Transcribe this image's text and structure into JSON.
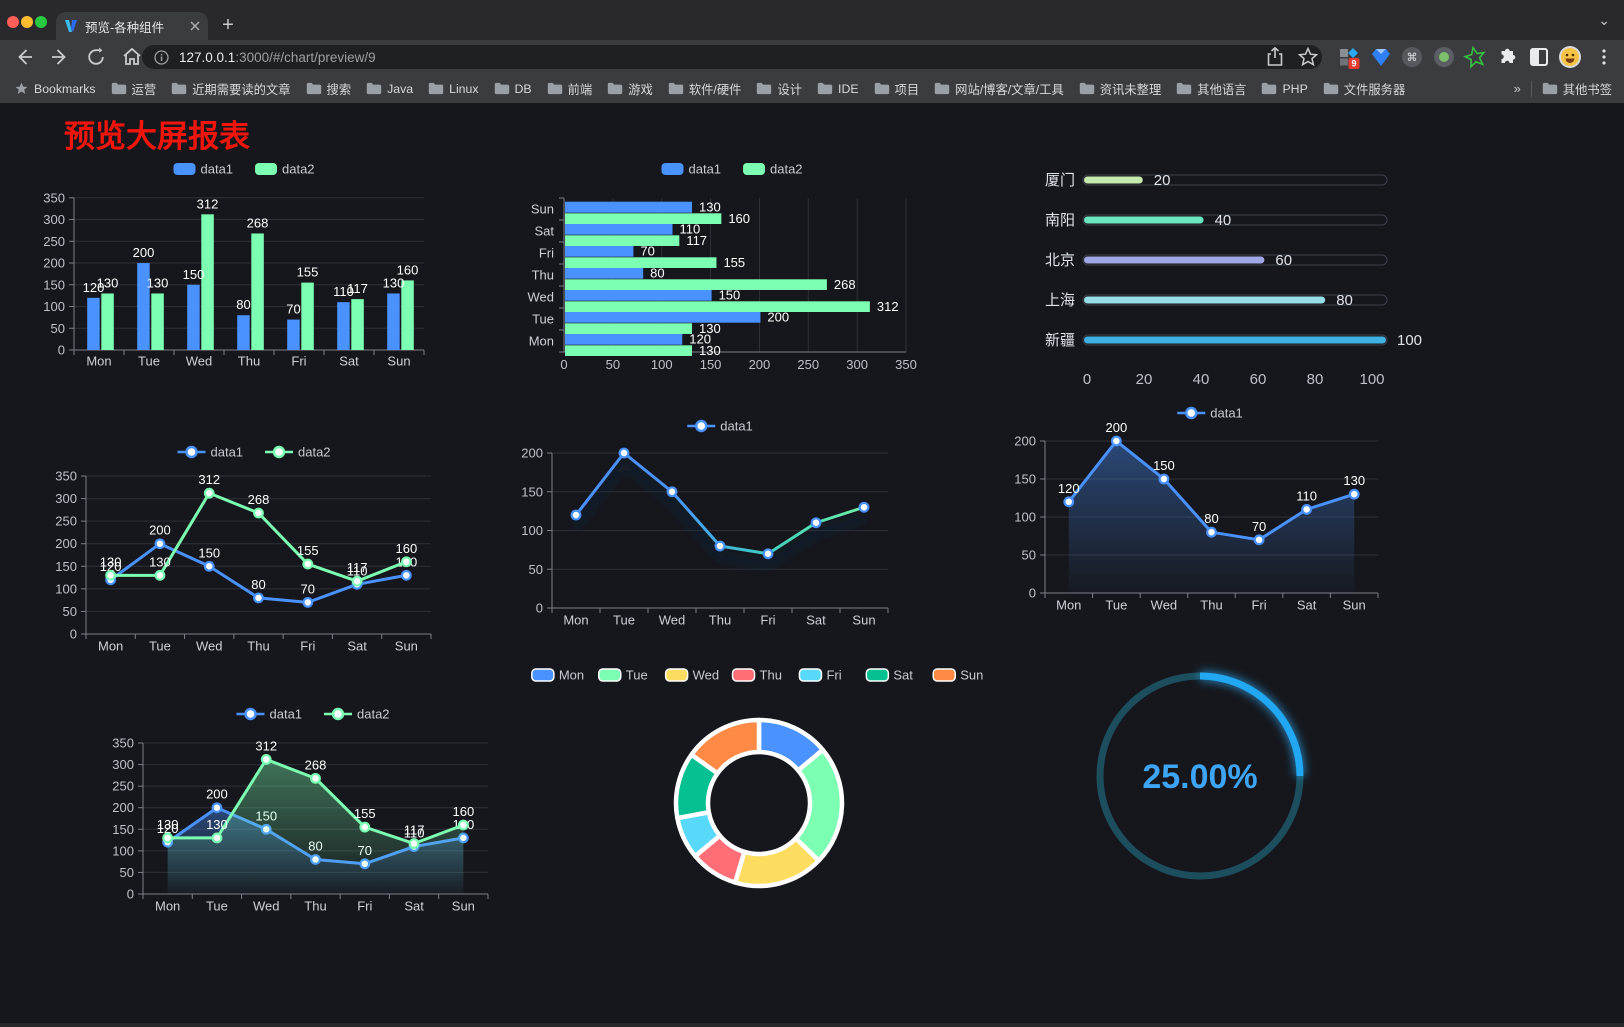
{
  "browser": {
    "tab": {
      "title": "预览-各种组件"
    },
    "url": {
      "host": "127.0.0.1",
      "rest": ":3000/#/chart/preview/9"
    },
    "bookmarks_label": "Bookmarks",
    "bookmarks": [
      "运营",
      "近期需要读的文章",
      "搜索",
      "Java",
      "Linux",
      "DB",
      "前端",
      "游戏",
      "软件/硬件",
      "设计",
      "IDE",
      "项目",
      "网站/博客/文章/工具",
      "资讯未整理",
      "其他语言",
      "PHP",
      "文件服务器"
    ],
    "bookmarks_overflow": "»",
    "other_bookmarks": "其他书签",
    "extension_badge": "9"
  },
  "page": {
    "title": "预览大屏报表"
  },
  "chart_data": [
    {
      "type": "bar",
      "categories": [
        "Mon",
        "Tue",
        "Wed",
        "Thu",
        "Fri",
        "Sat",
        "Sun"
      ],
      "series": [
        {
          "name": "data1",
          "color": "#4992ff",
          "values": [
            120,
            200,
            150,
            80,
            70,
            110,
            130
          ]
        },
        {
          "name": "data2",
          "color": "#7cffb2",
          "values": [
            130,
            130,
            312,
            268,
            155,
            117,
            160
          ]
        }
      ],
      "ylim": [
        0,
        350
      ],
      "yticks": [
        0,
        50,
        100,
        150,
        200,
        250,
        300,
        350
      ],
      "legend_position": "top",
      "grid": true
    },
    {
      "type": "hbar",
      "categories": [
        "Mon",
        "Tue",
        "Wed",
        "Thu",
        "Fri",
        "Sat",
        "Sun"
      ],
      "series": [
        {
          "name": "data1",
          "color": "#4992ff",
          "values": [
            120,
            200,
            150,
            80,
            70,
            110,
            130
          ]
        },
        {
          "name": "data2",
          "color": "#7cffb2",
          "values": [
            130,
            130,
            312,
            268,
            155,
            117,
            160
          ]
        }
      ],
      "xlim": [
        0,
        350
      ],
      "xticks": [
        0,
        50,
        100,
        150,
        200,
        250,
        300,
        350
      ],
      "legend_position": "top",
      "grid": true
    },
    {
      "type": "progress",
      "items": [
        {
          "label": "厦门",
          "value": 20,
          "color": "#c4ebad"
        },
        {
          "label": "南阳",
          "value": 40,
          "color": "#6be6c1"
        },
        {
          "label": "北京",
          "value": 60,
          "color": "#a0a7e6"
        },
        {
          "label": "上海",
          "value": 80,
          "color": "#96dee8"
        },
        {
          "label": "新疆",
          "value": 100,
          "color": "#3fb1e3"
        }
      ],
      "xlim": [
        0,
        100
      ],
      "xticks": [
        0,
        20,
        40,
        60,
        80,
        100
      ]
    },
    {
      "type": "line",
      "categories": [
        "Mon",
        "Tue",
        "Wed",
        "Thu",
        "Fri",
        "Sat",
        "Sun"
      ],
      "series": [
        {
          "name": "data1",
          "color": "#4992ff",
          "values": [
            120,
            200,
            150,
            80,
            70,
            110,
            130
          ]
        },
        {
          "name": "data2",
          "color": "#7cffb2",
          "values": [
            130,
            130,
            312,
            268,
            155,
            117,
            160
          ]
        }
      ],
      "ylim": [
        0,
        350
      ],
      "yticks": [
        0,
        50,
        100,
        150,
        200,
        250,
        300,
        350
      ],
      "point_labels": true
    },
    {
      "type": "line",
      "categories": [
        "Mon",
        "Tue",
        "Wed",
        "Thu",
        "Fri",
        "Sat",
        "Sun"
      ],
      "series": [
        {
          "name": "data1",
          "color": "#4992ff",
          "gradient": [
            "#4992ff",
            "#4992ff",
            "#3fd0c0",
            "#6ef0a8"
          ],
          "values": [
            120,
            200,
            150,
            80,
            70,
            110,
            130
          ]
        }
      ],
      "ylim": [
        0,
        200
      ],
      "yticks": [
        0,
        50,
        100,
        150,
        200
      ],
      "point_labels": false,
      "line_shadow": true
    },
    {
      "type": "area",
      "categories": [
        "Mon",
        "Tue",
        "Wed",
        "Thu",
        "Fri",
        "Sat",
        "Sun"
      ],
      "series": [
        {
          "name": "data1",
          "color": "#4992ff",
          "values": [
            120,
            200,
            150,
            80,
            70,
            110,
            130
          ],
          "area": true
        }
      ],
      "ylim": [
        0,
        200
      ],
      "yticks": [
        0,
        50,
        100,
        150,
        200
      ],
      "point_labels": true
    },
    {
      "type": "line",
      "categories": [
        "Mon",
        "Tue",
        "Wed",
        "Thu",
        "Fri",
        "Sat",
        "Sun"
      ],
      "series": [
        {
          "name": "data1",
          "color": "#4992ff",
          "values": [
            120,
            200,
            150,
            80,
            70,
            110,
            130
          ],
          "area": true
        },
        {
          "name": "data2",
          "color": "#7cffb2",
          "values": [
            130,
            130,
            312,
            268,
            155,
            117,
            160
          ],
          "area": true
        }
      ],
      "ylim": [
        0,
        350
      ],
      "yticks": [
        0,
        50,
        100,
        150,
        200,
        250,
        300,
        350
      ],
      "point_labels": true
    },
    {
      "type": "pie",
      "items": [
        {
          "label": "Mon",
          "value": 120,
          "color": "#4992ff"
        },
        {
          "label": "Tue",
          "value": 200,
          "color": "#7cffb2"
        },
        {
          "label": "Wed",
          "value": 150,
          "color": "#fddd60"
        },
        {
          "label": "Thu",
          "value": 80,
          "color": "#ff6e76"
        },
        {
          "label": "Fri",
          "value": 70,
          "color": "#58d9f9"
        },
        {
          "label": "Sat",
          "value": 110,
          "color": "#05c091"
        },
        {
          "label": "Sun",
          "value": 130,
          "color": "#ff8a45"
        }
      ],
      "inner_radius": true,
      "legend_position": "top"
    },
    {
      "type": "gauge",
      "value": 25,
      "label": "25.00%",
      "color": "#24a8f2",
      "track_color": "#1d4e5e"
    }
  ]
}
